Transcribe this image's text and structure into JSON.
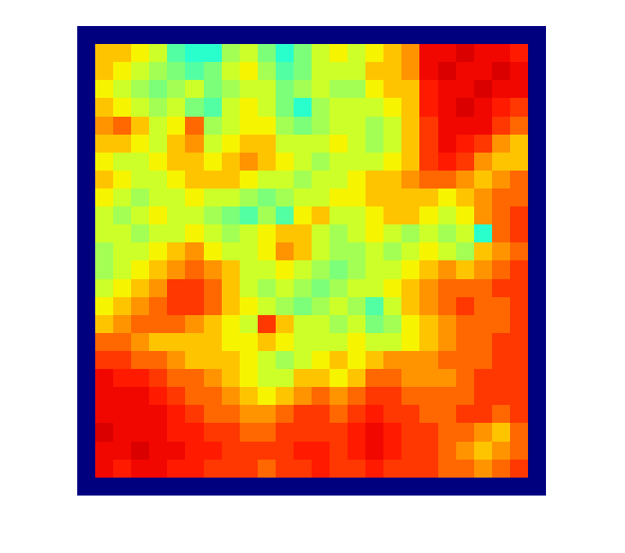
{
  "chart_data": {
    "type": "heatmap",
    "color": "jet",
    "tick_labels": false,
    "color_range": [
      0,
      1
    ],
    "cells": [
      [
        0,
        0,
        0,
        0,
        0,
        0,
        0,
        0,
        0,
        0,
        0,
        0,
        0,
        0,
        0,
        0,
        0,
        0,
        0,
        0,
        0,
        0,
        0,
        0,
        0,
        0
      ],
      [
        0,
        0.7,
        0.7,
        0.65,
        0.6,
        0.45,
        0.4,
        0.4,
        0.55,
        0.6,
        0.5,
        0.4,
        0.5,
        0.6,
        0.65,
        0.6,
        0.65,
        0.7,
        0.75,
        0.9,
        0.9,
        0.92,
        0.9,
        0.9,
        0.88,
        0
      ],
      [
        0,
        0.7,
        0.65,
        0.6,
        0.55,
        0.5,
        0.45,
        0.5,
        0.6,
        0.65,
        0.55,
        0.45,
        0.5,
        0.6,
        0.6,
        0.6,
        0.7,
        0.7,
        0.75,
        0.9,
        0.92,
        0.9,
        0.9,
        0.92,
        0.9,
        0
      ],
      [
        0,
        0.65,
        0.6,
        0.55,
        0.5,
        0.55,
        0.6,
        0.5,
        0.55,
        0.6,
        0.6,
        0.5,
        0.55,
        0.6,
        0.55,
        0.55,
        0.65,
        0.7,
        0.7,
        0.88,
        0.9,
        0.9,
        0.92,
        0.9,
        0.9,
        0
      ],
      [
        0,
        0.7,
        0.65,
        0.6,
        0.55,
        0.6,
        0.5,
        0.45,
        0.6,
        0.65,
        0.6,
        0.5,
        0.4,
        0.55,
        0.6,
        0.6,
        0.6,
        0.65,
        0.7,
        0.88,
        0.9,
        0.92,
        0.9,
        0.88,
        0.85,
        0
      ],
      [
        0,
        0.75,
        0.8,
        0.7,
        0.6,
        0.65,
        0.8,
        0.55,
        0.6,
        0.65,
        0.65,
        0.55,
        0.5,
        0.55,
        0.6,
        0.6,
        0.55,
        0.6,
        0.7,
        0.85,
        0.9,
        0.9,
        0.9,
        0.85,
        0.8,
        0
      ],
      [
        0,
        0.7,
        0.7,
        0.65,
        0.6,
        0.7,
        0.75,
        0.6,
        0.65,
        0.7,
        0.7,
        0.6,
        0.6,
        0.6,
        0.65,
        0.6,
        0.55,
        0.6,
        0.7,
        0.85,
        0.9,
        0.88,
        0.85,
        0.75,
        0.7,
        0
      ],
      [
        0,
        0.65,
        0.6,
        0.6,
        0.65,
        0.7,
        0.7,
        0.65,
        0.7,
        0.75,
        0.7,
        0.65,
        0.6,
        0.55,
        0.6,
        0.6,
        0.6,
        0.65,
        0.7,
        0.85,
        0.88,
        0.85,
        0.75,
        0.7,
        0.7,
        0
      ],
      [
        0,
        0.7,
        0.65,
        0.6,
        0.6,
        0.65,
        0.7,
        0.7,
        0.7,
        0.65,
        0.6,
        0.6,
        0.55,
        0.6,
        0.6,
        0.65,
        0.7,
        0.7,
        0.75,
        0.8,
        0.8,
        0.75,
        0.7,
        0.75,
        0.8,
        0
      ],
      [
        0,
        0.65,
        0.6,
        0.55,
        0.6,
        0.6,
        0.65,
        0.6,
        0.6,
        0.55,
        0.5,
        0.55,
        0.6,
        0.6,
        0.65,
        0.65,
        0.7,
        0.7,
        0.7,
        0.7,
        0.65,
        0.7,
        0.75,
        0.8,
        0.8,
        0
      ],
      [
        0,
        0.6,
        0.55,
        0.6,
        0.65,
        0.6,
        0.6,
        0.55,
        0.5,
        0.45,
        0.55,
        0.45,
        0.65,
        0.7,
        0.6,
        0.6,
        0.65,
        0.7,
        0.7,
        0.65,
        0.6,
        0.65,
        0.75,
        0.8,
        0.85,
        0
      ],
      [
        0,
        0.6,
        0.6,
        0.55,
        0.6,
        0.6,
        0.65,
        0.6,
        0.55,
        0.6,
        0.65,
        0.7,
        0.7,
        0.6,
        0.55,
        0.6,
        0.65,
        0.6,
        0.55,
        0.6,
        0.55,
        0.6,
        0.4,
        0.8,
        0.85,
        0
      ],
      [
        0,
        0.55,
        0.6,
        0.6,
        0.65,
        0.7,
        0.75,
        0.65,
        0.6,
        0.6,
        0.65,
        0.75,
        0.7,
        0.6,
        0.55,
        0.55,
        0.6,
        0.55,
        0.6,
        0.65,
        0.6,
        0.55,
        0.7,
        0.75,
        0.8,
        0
      ],
      [
        0,
        0.55,
        0.6,
        0.65,
        0.7,
        0.75,
        0.8,
        0.75,
        0.7,
        0.6,
        0.6,
        0.65,
        0.6,
        0.55,
        0.5,
        0.55,
        0.6,
        0.6,
        0.65,
        0.7,
        0.75,
        0.7,
        0.75,
        0.8,
        0.85,
        0
      ],
      [
        0,
        0.6,
        0.65,
        0.7,
        0.75,
        0.85,
        0.85,
        0.8,
        0.7,
        0.6,
        0.55,
        0.6,
        0.55,
        0.5,
        0.55,
        0.6,
        0.6,
        0.65,
        0.7,
        0.75,
        0.8,
        0.8,
        0.8,
        0.85,
        0.85,
        0
      ],
      [
        0,
        0.65,
        0.7,
        0.75,
        0.8,
        0.85,
        0.85,
        0.8,
        0.7,
        0.65,
        0.6,
        0.55,
        0.5,
        0.55,
        0.6,
        0.55,
        0.45,
        0.6,
        0.7,
        0.75,
        0.8,
        0.85,
        0.8,
        0.8,
        0.85,
        0
      ],
      [
        0,
        0.7,
        0.75,
        0.8,
        0.8,
        0.8,
        0.75,
        0.7,
        0.65,
        0.6,
        0.85,
        0.7,
        0.6,
        0.6,
        0.55,
        0.6,
        0.5,
        0.55,
        0.65,
        0.7,
        0.75,
        0.8,
        0.8,
        0.8,
        0.85,
        0
      ],
      [
        0,
        0.8,
        0.8,
        0.75,
        0.7,
        0.7,
        0.7,
        0.7,
        0.65,
        0.65,
        0.7,
        0.65,
        0.6,
        0.6,
        0.6,
        0.65,
        0.6,
        0.6,
        0.65,
        0.7,
        0.75,
        0.8,
        0.8,
        0.85,
        0.85,
        0
      ],
      [
        0,
        0.85,
        0.85,
        0.8,
        0.8,
        0.75,
        0.7,
        0.7,
        0.7,
        0.65,
        0.6,
        0.55,
        0.6,
        0.65,
        0.7,
        0.65,
        0.7,
        0.75,
        0.75,
        0.75,
        0.8,
        0.8,
        0.8,
        0.85,
        0.85,
        0
      ],
      [
        0,
        0.9,
        0.88,
        0.88,
        0.85,
        0.8,
        0.8,
        0.75,
        0.7,
        0.65,
        0.6,
        0.6,
        0.7,
        0.7,
        0.65,
        0.7,
        0.8,
        0.8,
        0.75,
        0.75,
        0.75,
        0.8,
        0.85,
        0.85,
        0.85,
        0
      ],
      [
        0,
        0.9,
        0.9,
        0.9,
        0.88,
        0.85,
        0.8,
        0.8,
        0.75,
        0.7,
        0.65,
        0.7,
        0.75,
        0.8,
        0.75,
        0.8,
        0.85,
        0.85,
        0.8,
        0.8,
        0.8,
        0.8,
        0.85,
        0.85,
        0.85,
        0
      ],
      [
        0,
        0.9,
        0.9,
        0.9,
        0.9,
        0.88,
        0.85,
        0.8,
        0.8,
        0.75,
        0.75,
        0.8,
        0.85,
        0.85,
        0.8,
        0.85,
        0.88,
        0.85,
        0.85,
        0.8,
        0.8,
        0.85,
        0.85,
        0.8,
        0.85,
        0
      ],
      [
        0,
        0.92,
        0.9,
        0.9,
        0.9,
        0.88,
        0.88,
        0.85,
        0.85,
        0.8,
        0.8,
        0.85,
        0.85,
        0.85,
        0.85,
        0.88,
        0.9,
        0.88,
        0.85,
        0.85,
        0.8,
        0.8,
        0.75,
        0.7,
        0.8,
        0
      ],
      [
        0,
        0.9,
        0.9,
        0.92,
        0.9,
        0.9,
        0.88,
        0.88,
        0.85,
        0.85,
        0.85,
        0.85,
        0.88,
        0.88,
        0.85,
        0.88,
        0.9,
        0.88,
        0.85,
        0.85,
        0.8,
        0.75,
        0.7,
        0.75,
        0.8,
        0
      ],
      [
        0,
        0.9,
        0.88,
        0.9,
        0.9,
        0.88,
        0.88,
        0.85,
        0.85,
        0.85,
        0.8,
        0.85,
        0.85,
        0.88,
        0.85,
        0.85,
        0.88,
        0.85,
        0.85,
        0.85,
        0.8,
        0.8,
        0.75,
        0.8,
        0.85,
        0
      ],
      [
        0,
        0,
        0,
        0,
        0,
        0,
        0,
        0,
        0,
        0,
        0,
        0,
        0,
        0,
        0,
        0,
        0,
        0,
        0,
        0,
        0,
        0,
        0,
        0,
        0,
        0
      ]
    ]
  }
}
